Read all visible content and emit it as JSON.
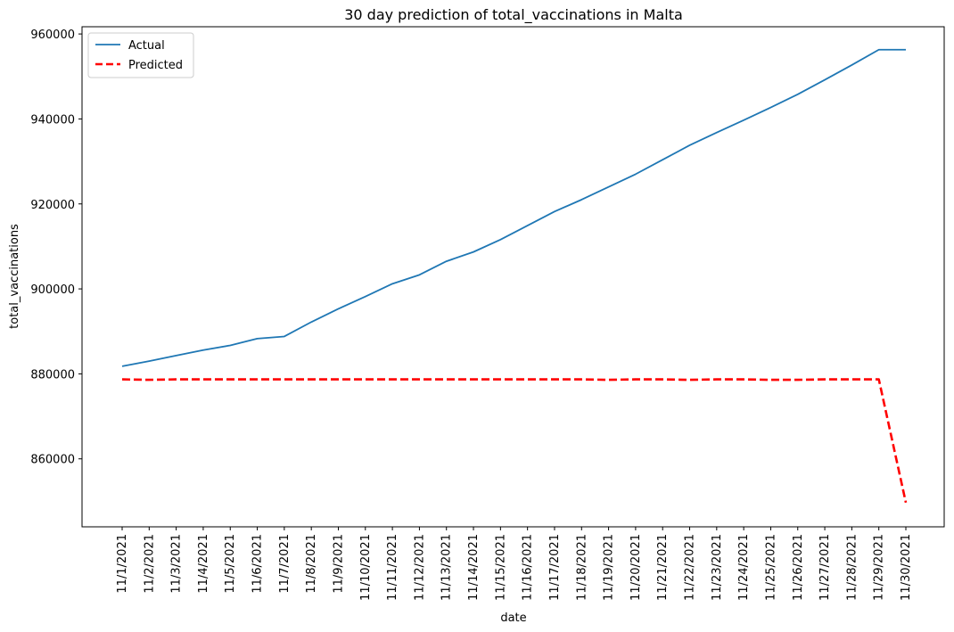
{
  "chart_data": {
    "type": "line",
    "title": "30 day prediction of total_vaccinations in Malta",
    "xlabel": "date",
    "ylabel": "total_vaccinations",
    "categories": [
      "11/1/2021",
      "11/2/2021",
      "11/3/2021",
      "11/4/2021",
      "11/5/2021",
      "11/6/2021",
      "11/7/2021",
      "11/8/2021",
      "11/9/2021",
      "11/10/2021",
      "11/11/2021",
      "11/12/2021",
      "11/13/2021",
      "11/14/2021",
      "11/15/2021",
      "11/16/2021",
      "11/17/2021",
      "11/18/2021",
      "11/19/2021",
      "11/20/2021",
      "11/21/2021",
      "11/22/2021",
      "11/23/2021",
      "11/24/2021",
      "11/25/2021",
      "11/26/2021",
      "11/27/2021",
      "11/28/2021",
      "11/29/2021",
      "11/30/2021"
    ],
    "series": [
      {
        "name": "Actual",
        "color": "#1f77b4",
        "style": "solid",
        "values": [
          881800,
          883000,
          884300,
          885600,
          886700,
          888300,
          888800,
          892200,
          895300,
          898200,
          901200,
          903300,
          906500,
          908700,
          911600,
          914900,
          918200,
          921000,
          924000,
          927000,
          930400,
          933800,
          936800,
          939700,
          942700,
          945800,
          949200,
          952700,
          956300,
          956300
        ]
      },
      {
        "name": "Predicted",
        "color": "#ff0000",
        "style": "dashed",
        "values": [
          878700,
          878600,
          878700,
          878700,
          878700,
          878700,
          878700,
          878700,
          878700,
          878700,
          878700,
          878700,
          878700,
          878700,
          878700,
          878700,
          878700,
          878700,
          878600,
          878700,
          878700,
          878600,
          878700,
          878700,
          878600,
          878600,
          878700,
          878700,
          878700,
          849700
        ]
      }
    ],
    "yticks": [
      860000,
      880000,
      900000,
      920000,
      940000,
      960000
    ],
    "ylim": [
      844000,
      961700
    ],
    "legend_position": "top-left",
    "grid": false
  }
}
